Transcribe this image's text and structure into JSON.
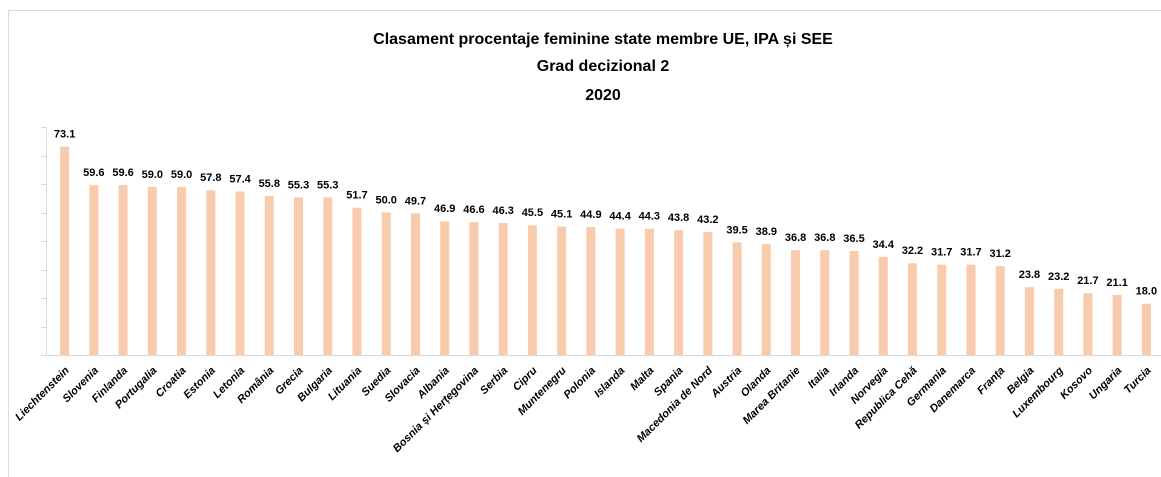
{
  "chart_data": {
    "type": "bar",
    "title": [
      "Clasament procentaje feminine state membre UE, IPA și SEE",
      "Grad decizional 2",
      "2020"
    ],
    "categories": [
      "Liechtenstein",
      "Slovenia",
      "Finlanda",
      "Portugalia",
      "Croatia",
      "Estonia",
      "Letonia",
      "România",
      "Grecia",
      "Bulgaria",
      "Lituania",
      "Suedia",
      "Slovacia",
      "Albania",
      "Bosnia și Herțegovina",
      "Serbia",
      "Cipru",
      "Muntenegru",
      "Polonia",
      "Islanda",
      "Malta",
      "Spania",
      "Macedonia de Nord",
      "Austria",
      "Olanda",
      "Marea Britanie",
      "Italia",
      "Irlanda",
      "Norvegia",
      "Republica Cehă",
      "Germania",
      "Danemarca",
      "Franța",
      "Belgia",
      "Luxembourg",
      "Kosovo",
      "Ungaria",
      "Turcia"
    ],
    "values": [
      73.1,
      59.6,
      59.6,
      59.0,
      59.0,
      57.8,
      57.4,
      55.8,
      55.3,
      55.3,
      51.7,
      50.0,
      49.7,
      46.9,
      46.6,
      46.3,
      45.5,
      45.1,
      44.9,
      44.4,
      44.3,
      43.8,
      43.2,
      39.5,
      38.9,
      36.8,
      36.8,
      36.5,
      34.4,
      32.2,
      31.7,
      31.7,
      31.2,
      23.8,
      23.2,
      21.7,
      21.1,
      18.0
    ],
    "value_labels": [
      "73.1",
      "59.6",
      "59.6",
      "59.0",
      "59.0",
      "57.8",
      "57.4",
      "55.8",
      "55.3",
      "55.3",
      "51.7",
      "50.0",
      "49.7",
      "46.9",
      "46.6",
      "46.3",
      "45.5",
      "45.1",
      "44.9",
      "44.4",
      "44.3",
      "43.8",
      "43.2",
      "39.5",
      "38.9",
      "36.8",
      "36.8",
      "36.5",
      "34.4",
      "32.2",
      "31.7",
      "31.7",
      "31.2",
      "23.8",
      "23.2",
      "21.7",
      "21.1",
      "18.0"
    ],
    "color": "#f8cbad",
    "ylim": [
      0,
      80
    ],
    "yticks": [
      0,
      10,
      20,
      30,
      40,
      50,
      60,
      70,
      80
    ]
  }
}
